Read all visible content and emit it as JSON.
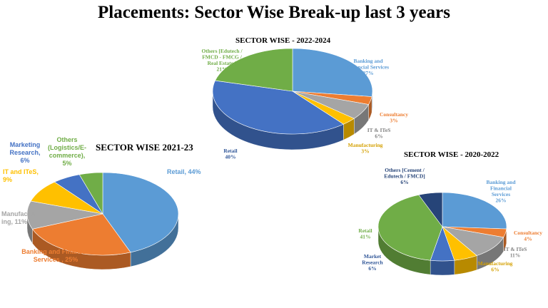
{
  "page": {
    "title": "Placements: Sector Wise Break-up last 3 years"
  },
  "chart_data": [
    {
      "type": "pie",
      "title": "SECTOR WISE - 2022-2024",
      "slices": [
        {
          "label_lines": [
            "Banking and",
            "Financial Services",
            "27%"
          ],
          "value": 27,
          "color": "#5B9BD5",
          "label_color": "#5B9BD5"
        },
        {
          "label_lines": [
            "Consultancy",
            "3%"
          ],
          "value": 3,
          "color": "#ED7D31",
          "label_color": "#ED7D31"
        },
        {
          "label_lines": [
            "IT & ITeS",
            "6%"
          ],
          "value": 6,
          "color": "#A5A5A5",
          "label_color": "#808080"
        },
        {
          "label_lines": [
            "Manufacturing",
            "3%"
          ],
          "value": 3,
          "color": "#FFC000",
          "label_color": "#D4A000"
        },
        {
          "label_lines": [
            "Retail",
            "40%"
          ],
          "value": 40,
          "color": "#4472C4",
          "label_color": "#2F5597"
        },
        {
          "label_lines": [
            "Others [Edutech /",
            "FMCD - FMCG /",
            "Real Estate ]",
            "21%"
          ],
          "value": 21,
          "color": "#70AD47",
          "label_color": "#70AD47"
        }
      ]
    },
    {
      "type": "pie",
      "title": "SECTOR WISE 2021-23",
      "slices": [
        {
          "label_lines": [
            "Retail, 44%"
          ],
          "value": 44,
          "color": "#5B9BD5",
          "label_color": "#5B9BD5"
        },
        {
          "label_lines": [
            "Banking and Financial",
            "Services , 25%"
          ],
          "value": 25,
          "color": "#ED7D31",
          "label_color": "#ED7D31"
        },
        {
          "label_lines": [
            "Manufactur",
            "ing, 11%"
          ],
          "value": 11,
          "color": "#A5A5A5",
          "label_color": "#A5A5A5"
        },
        {
          "label_lines": [
            "IT and ITeS,",
            "9%"
          ],
          "value": 9,
          "color": "#FFC000",
          "label_color": "#FFC000"
        },
        {
          "label_lines": [
            "Marketing",
            "Research,",
            "6%"
          ],
          "value": 6,
          "color": "#4472C4",
          "label_color": "#4472C4"
        },
        {
          "label_lines": [
            "Others",
            "(Logistics/E-",
            "commerce),",
            "5%"
          ],
          "value": 5,
          "color": "#70AD47",
          "label_color": "#70AD47"
        }
      ]
    },
    {
      "type": "pie",
      "title": "SECTOR WISE - 2020-2022",
      "slices": [
        {
          "label_lines": [
            "Banking and",
            "Financial",
            "Services",
            "26%"
          ],
          "value": 26,
          "color": "#5B9BD5",
          "label_color": "#5B9BD5"
        },
        {
          "label_lines": [
            "Consultancy",
            "4%"
          ],
          "value": 4,
          "color": "#ED7D31",
          "label_color": "#ED7D31"
        },
        {
          "label_lines": [
            "IT & ITeS",
            "11%"
          ],
          "value": 11,
          "color": "#A5A5A5",
          "label_color": "#808080"
        },
        {
          "label_lines": [
            "Manufacturing",
            "6%"
          ],
          "value": 6,
          "color": "#FFC000",
          "label_color": "#D4A000"
        },
        {
          "label_lines": [
            "Market",
            "Research",
            "6%"
          ],
          "value": 6,
          "color": "#4472C4",
          "label_color": "#2F5597"
        },
        {
          "label_lines": [
            "Retail",
            "41%"
          ],
          "value": 41,
          "color": "#70AD47",
          "label_color": "#70AD47"
        },
        {
          "label_lines": [
            "Others [Cement /",
            "Edutech / FMCD]",
            "6%"
          ],
          "value": 6,
          "color": "#264478",
          "label_color": "#264478"
        }
      ]
    }
  ]
}
